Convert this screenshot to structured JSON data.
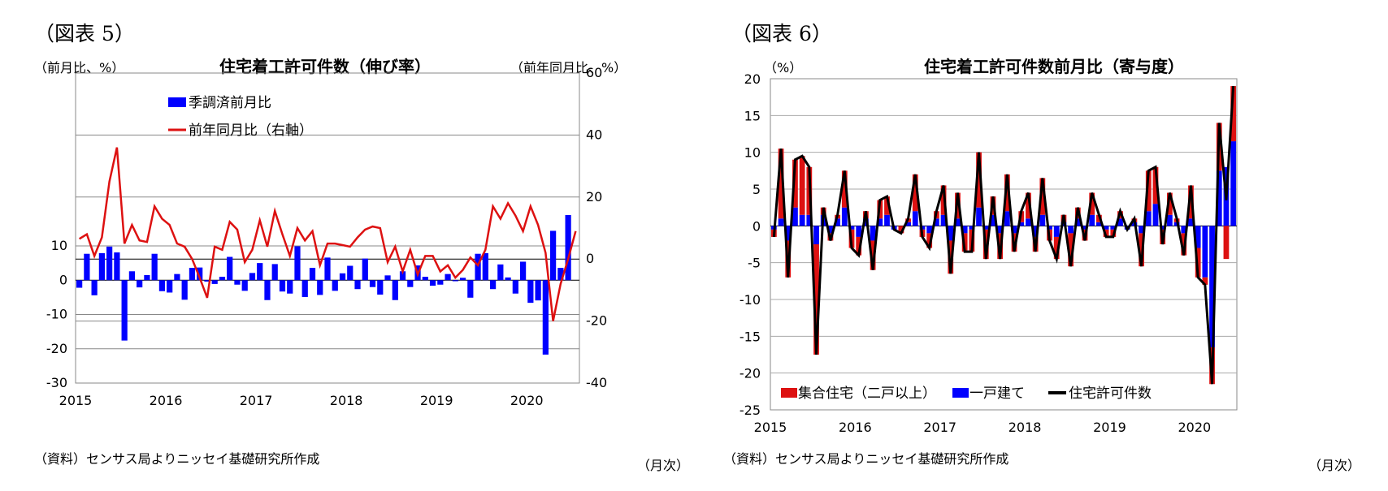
{
  "chart_data": [
    {
      "figure_label": "（図表 5）",
      "type": "bar+line",
      "title": "住宅着工許可件数（伸び率）",
      "left_unit": "（前月比、%）",
      "right_unit": "（前年同月比、%）",
      "source": "（資料）センサス局よりニッセイ基礎研究所作成",
      "x_unit": "（月次）",
      "x_tick_labels": [
        "2015",
        "2016",
        "2017",
        "2018",
        "2019",
        "2020"
      ],
      "left_ylim": [
        -30,
        10
      ],
      "left_ticks": [
        "10",
        "0",
        "-10",
        "-20",
        "-30"
      ],
      "right_ylim": [
        -40,
        60
      ],
      "right_ticks": [
        "60",
        "40",
        "20",
        "0",
        "-20",
        "-40"
      ],
      "legend_position": "top-left",
      "series": [
        {
          "name": "季調済前月比",
          "type": "bar",
          "axis": "left",
          "color": "#0000ff",
          "values": [
            -2.2,
            7.7,
            -4.4,
            7.9,
            9.8,
            8.1,
            -17.6,
            2.6,
            -2.1,
            1.5,
            7.7,
            -3.2,
            -3.6,
            1.8,
            -5.7,
            3.6,
            3.7,
            -0.4,
            -1.1,
            1.0,
            6.8,
            -1.3,
            -3.1,
            2.1,
            5.0,
            -5.8,
            4.7,
            -3.3,
            -3.9,
            9.9,
            -4.9,
            3.6,
            -4.3,
            6.6,
            -3.1,
            2.0,
            4.2,
            -2.6,
            6.3,
            -2.0,
            -4.2,
            1.4,
            -5.8,
            2.6,
            -2.0,
            4.3,
            1.0,
            -1.6,
            -1.3,
            1.8,
            -0.3,
            0.7,
            -5.1,
            7.7,
            7.9,
            -2.6,
            4.6,
            0.8,
            -3.9,
            5.4,
            -6.6,
            -5.9,
            -21.7,
            14.4,
            3.6,
            19.0
          ]
        },
        {
          "name": "前年同月比（右軸）",
          "type": "line",
          "axis": "right",
          "color": "#dd1111",
          "values": [
            6.5,
            8.0,
            1.0,
            7.0,
            25.0,
            36.0,
            5.0,
            11.0,
            6.0,
            5.5,
            17.0,
            13.0,
            11.0,
            5.0,
            4.0,
            0.0,
            -6.0,
            -12.5,
            4.0,
            3.0,
            12.0,
            9.5,
            -1.0,
            3.0,
            12.5,
            4.0,
            15.5,
            8.0,
            1.0,
            10.0,
            6.0,
            9.0,
            -2.0,
            5.0,
            5.0,
            4.5,
            4.0,
            7.0,
            9.5,
            10.5,
            10.0,
            -1.0,
            4.0,
            -4.0,
            3.0,
            -5.0,
            1.0,
            1.0,
            -4.0,
            -2.0,
            -6.0,
            -3.5,
            0.5,
            -2.0,
            3.0,
            17.0,
            13.0,
            18.0,
            14.0,
            9.0,
            17.0,
            11.0,
            2.0,
            -20.0,
            -8.0,
            0.0,
            9.0
          ]
        }
      ]
    },
    {
      "figure_label": "（図表 6）",
      "type": "stacked-bar+line",
      "title": "住宅着工許可件数前月比（寄与度）",
      "y_unit": "（%）",
      "source": "（資料）センサス局よりニッセイ基礎研究所作成",
      "x_unit": "（月次）",
      "x_tick_labels": [
        "2015",
        "2016",
        "2017",
        "2018",
        "2019",
        "2020"
      ],
      "ylim": [
        -25,
        20
      ],
      "y_ticks": [
        "20",
        "15",
        "10",
        "5",
        "0",
        "-5",
        "-10",
        "-15",
        "-20",
        "-25"
      ],
      "legend_position": "bottom-left",
      "series": [
        {
          "name": "集合住宅（二戸以上）",
          "type": "bar",
          "color": "#dd1111",
          "values": [
            -1.0,
            9.5,
            -5.0,
            6.5,
            8.0,
            6.5,
            -15.0,
            1.0,
            -1.0,
            0.5,
            5.0,
            -2.5,
            -2.5,
            1.0,
            -4.0,
            2.5,
            2.5,
            0.0,
            -1.0,
            0.5,
            5.0,
            -1.0,
            -2.0,
            1.0,
            4.0,
            -4.5,
            3.5,
            -2.5,
            -3.0,
            7.5,
            -4.0,
            2.5,
            -3.5,
            5.0,
            -2.5,
            1.5,
            3.5,
            -2.0,
            5.0,
            -1.5,
            -3.0,
            1.0,
            -4.5,
            1.5,
            -1.5,
            3.0,
            1.0,
            -1.0,
            -1.0,
            1.0,
            0.0,
            0.5,
            -4.5,
            5.5,
            5.0,
            -2.0,
            3.0,
            0.5,
            -3.0,
            4.5,
            -4.0,
            -1.0,
            -5.0,
            6.5,
            -4.5,
            7.5
          ]
        },
        {
          "name": "一戸建て",
          "type": "bar",
          "color": "#0000ff",
          "values": [
            -0.5,
            1.0,
            -2.0,
            2.5,
            1.5,
            1.5,
            -2.5,
            1.5,
            -1.0,
            1.0,
            2.5,
            -0.5,
            -1.5,
            1.0,
            -2.0,
            1.0,
            1.5,
            -0.5,
            0.0,
            0.5,
            2.0,
            -0.5,
            -1.0,
            1.0,
            1.5,
            -2.0,
            1.0,
            -1.0,
            -0.5,
            2.5,
            -0.5,
            1.5,
            -1.0,
            2.0,
            -1.0,
            0.5,
            1.0,
            -1.5,
            1.5,
            -0.5,
            -1.5,
            0.5,
            -1.0,
            1.0,
            -0.5,
            1.5,
            0.5,
            -0.5,
            -0.5,
            1.0,
            -0.5,
            0.5,
            -1.0,
            2.0,
            3.0,
            -0.5,
            1.5,
            0.5,
            -1.0,
            1.0,
            -3.0,
            -7.0,
            -16.5,
            7.5,
            8.0,
            11.5
          ]
        },
        {
          "name": "住宅許可件数",
          "type": "line",
          "color": "#000000",
          "values": [
            -1.5,
            10.5,
            -7.0,
            9.0,
            9.5,
            8.0,
            -17.5,
            2.5,
            -2.0,
            1.5,
            7.5,
            -3.0,
            -4.0,
            2.0,
            -6.0,
            3.5,
            4.0,
            -0.5,
            -1.0,
            1.0,
            7.0,
            -1.5,
            -3.0,
            2.0,
            5.5,
            -6.5,
            4.5,
            -3.5,
            -3.5,
            10.0,
            -4.5,
            4.0,
            -4.5,
            7.0,
            -3.5,
            2.0,
            4.5,
            -3.5,
            6.5,
            -2.0,
            -4.5,
            1.5,
            -5.5,
            2.5,
            -2.0,
            4.5,
            1.5,
            -1.5,
            -1.5,
            2.0,
            -0.5,
            1.0,
            -5.5,
            7.5,
            8.0,
            -2.5,
            4.5,
            1.0,
            -4.0,
            5.5,
            -7.0,
            -8.0,
            -21.5,
            14.0,
            3.5,
            19.0
          ]
        }
      ]
    }
  ]
}
